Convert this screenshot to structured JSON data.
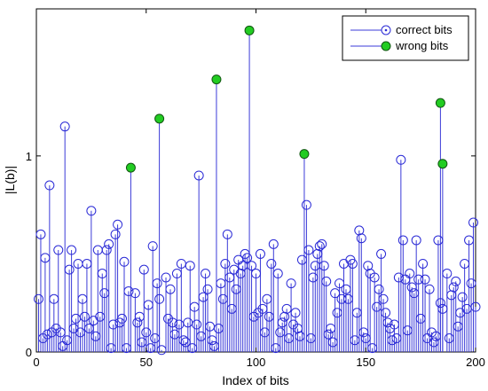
{
  "chart_data": {
    "type": "scatter",
    "plot_style": "stem",
    "xlabel": "Index of bits",
    "ylabel": "|L(b)|",
    "xlim": [
      0,
      200
    ],
    "ylim": [
      0,
      1.75
    ],
    "xticks": [
      0,
      50,
      100,
      150,
      200
    ],
    "yticks": [
      0,
      1
    ],
    "grid": false,
    "legend_position": "top-right",
    "colors": {
      "correct": "#2a2ad6",
      "wrong_fill": "#22cc22",
      "wrong_stroke": "#115511",
      "stem": "#3b3bd8"
    },
    "series": [
      {
        "name": "correct bits",
        "marker": "open-circle",
        "x": [
          1,
          2,
          3,
          4,
          5,
          6,
          7,
          8,
          9,
          10,
          11,
          12,
          13,
          14,
          15,
          16,
          17,
          18,
          19,
          20,
          21,
          22,
          23,
          24,
          25,
          26,
          27,
          28,
          29,
          30,
          31,
          32,
          33,
          34,
          35,
          36,
          37,
          38,
          39,
          40,
          41,
          42,
          45,
          46,
          47,
          48,
          49,
          50,
          51,
          52,
          53,
          54,
          55,
          56,
          57,
          59,
          60,
          61,
          62,
          63,
          64,
          65,
          66,
          67,
          68,
          69,
          70,
          71,
          72,
          73,
          74,
          75,
          76,
          77,
          78,
          79,
          80,
          81,
          83,
          84,
          85,
          86,
          87,
          88,
          89,
          90,
          91,
          92,
          93,
          94,
          95,
          96,
          98,
          99,
          100,
          101,
          102,
          103,
          104,
          105,
          106,
          107,
          108,
          109,
          110,
          111,
          112,
          113,
          114,
          115,
          116,
          117,
          118,
          119,
          120,
          121,
          123,
          124,
          125,
          126,
          127,
          128,
          129,
          130,
          131,
          132,
          133,
          134,
          135,
          136,
          137,
          138,
          139,
          140,
          141,
          142,
          143,
          144,
          145,
          146,
          147,
          148,
          149,
          150,
          151,
          152,
          153,
          154,
          155,
          156,
          157,
          158,
          159,
          160,
          161,
          162,
          163,
          164,
          165,
          166,
          167,
          168,
          169,
          170,
          171,
          172,
          173,
          174,
          175,
          176,
          177,
          178,
          179,
          180,
          181,
          182,
          183,
          184,
          185,
          187,
          188,
          189,
          190,
          191,
          192,
          193,
          194,
          195,
          196,
          197,
          198,
          199,
          200
        ],
        "y": [
          0.27,
          0.6,
          0.07,
          0.48,
          0.09,
          0.85,
          0.1,
          0.27,
          0.12,
          0.52,
          0.1,
          0.03,
          1.15,
          0.06,
          0.42,
          0.52,
          0.12,
          0.17,
          0.45,
          0.1,
          0.27,
          0.18,
          0.45,
          0.12,
          0.72,
          0.16,
          0.08,
          0.52,
          0.18,
          0.4,
          0.3,
          0.52,
          0.55,
          0.02,
          0.14,
          0.6,
          0.65,
          0.15,
          0.17,
          0.46,
          0.02,
          0.31,
          0.3,
          0.15,
          0.18,
          0.05,
          0.42,
          0.1,
          0.24,
          0.02,
          0.54,
          0.07,
          0.35,
          0.27,
          0.01,
          0.38,
          0.17,
          0.32,
          0.15,
          0.09,
          0.4,
          0.14,
          0.45,
          0.06,
          0.05,
          0.15,
          0.44,
          0.02,
          0.23,
          0.14,
          0.9,
          0.08,
          0.28,
          0.4,
          0.32,
          0.13,
          0.06,
          0.03,
          0.12,
          0.35,
          0.27,
          0.45,
          0.6,
          0.38,
          0.22,
          0.42,
          0.32,
          0.47,
          0.4,
          0.44,
          0.5,
          0.48,
          0.44,
          0.18,
          0.4,
          0.2,
          0.5,
          0.22,
          0.1,
          0.27,
          0.18,
          0.45,
          0.55,
          0.02,
          0.4,
          0.1,
          0.15,
          0.18,
          0.22,
          0.07,
          0.35,
          0.14,
          0.2,
          0.12,
          0.08,
          0.47,
          0.75,
          0.52,
          0.07,
          0.38,
          0.44,
          0.5,
          0.54,
          0.55,
          0.44,
          0.36,
          0.09,
          0.12,
          0.05,
          0.3,
          0.2,
          0.35,
          0.27,
          0.45,
          0.32,
          0.27,
          0.47,
          0.45,
          0.06,
          0.2,
          0.62,
          0.58,
          0.1,
          0.07,
          0.44,
          0.4,
          0.02,
          0.38,
          0.23,
          0.32,
          0.5,
          0.27,
          0.2,
          0.15,
          0.12,
          0.06,
          0.14,
          0.07,
          0.38,
          0.98,
          0.57,
          0.37,
          0.11,
          0.4,
          0.33,
          0.3,
          0.57,
          0.37,
          0.17,
          0.45,
          0.37,
          0.07,
          0.32,
          0.1,
          0.05,
          0.08,
          0.57,
          0.25,
          0.22,
          0.4,
          0.07,
          0.29,
          0.33,
          0.36,
          0.13,
          0.2,
          0.28,
          0.45,
          0.22,
          0.57,
          0.35,
          0.66,
          0.23
        ]
      },
      {
        "name": "wrong bits",
        "marker": "filled-circle",
        "x": [
          43,
          56,
          82,
          97,
          122,
          184,
          185
        ],
        "y": [
          0.94,
          1.19,
          1.39,
          1.64,
          1.01,
          1.27,
          0.96
        ]
      }
    ]
  }
}
